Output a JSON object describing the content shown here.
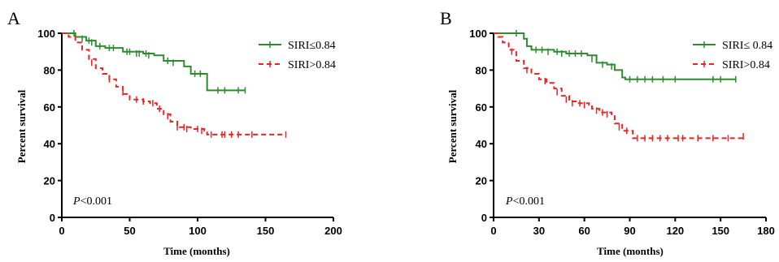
{
  "chart_data": [
    {
      "panel_label": "A",
      "type": "line",
      "subtype": "kaplan-meier",
      "ylabel": "Percent survival",
      "xlabel": "Time (months)",
      "xlim": [
        0,
        200
      ],
      "ylim": [
        0,
        100
      ],
      "xticks": [
        "0",
        "50",
        "100",
        "150",
        "200"
      ],
      "yticks": [
        "0",
        "20",
        "40",
        "60",
        "80",
        "100"
      ],
      "annotation": {
        "italic": "P",
        "rest": "<0.001"
      },
      "grid": false,
      "legend_position": "top-right",
      "series": [
        {
          "name": "SIRI≤0.84",
          "color": "#2e8b2e",
          "style": "solid",
          "points": [
            [
              0,
              100
            ],
            [
              8,
              100
            ],
            [
              10,
              98
            ],
            [
              18,
              96
            ],
            [
              25,
              93
            ],
            [
              32,
              92
            ],
            [
              45,
              90
            ],
            [
              60,
              89
            ],
            [
              68,
              88
            ],
            [
              75,
              85
            ],
            [
              90,
              82
            ],
            [
              95,
              78
            ],
            [
              107,
              78
            ],
            [
              107,
              69
            ],
            [
              135,
              69
            ]
          ],
          "censors": [
            [
              9,
              100
            ],
            [
              15,
              97
            ],
            [
              20,
              96
            ],
            [
              22,
              95
            ],
            [
              28,
              93
            ],
            [
              35,
              92
            ],
            [
              38,
              92
            ],
            [
              48,
              90
            ],
            [
              50,
              90
            ],
            [
              55,
              89
            ],
            [
              57,
              89
            ],
            [
              62,
              89
            ],
            [
              64,
              88
            ],
            [
              78,
              85
            ],
            [
              82,
              84
            ],
            [
              98,
              78
            ],
            [
              102,
              78
            ],
            [
              115,
              69
            ],
            [
              120,
              69
            ],
            [
              130,
              69
            ],
            [
              135,
              69
            ]
          ]
        },
        {
          "name": "SIRI>0.84",
          "color": "#ee2222",
          "style": "dashed",
          "points": [
            [
              0,
              100
            ],
            [
              5,
              98
            ],
            [
              10,
              95
            ],
            [
              15,
              91
            ],
            [
              20,
              86
            ],
            [
              25,
              81
            ],
            [
              30,
              78
            ],
            [
              35,
              75
            ],
            [
              40,
              71
            ],
            [
              45,
              67
            ],
            [
              50,
              64
            ],
            [
              60,
              63
            ],
            [
              65,
              62
            ],
            [
              70,
              59
            ],
            [
              75,
              56
            ],
            [
              80,
              52
            ],
            [
              85,
              49
            ],
            [
              95,
              48
            ],
            [
              105,
              47
            ],
            [
              107,
              45
            ],
            [
              165,
              45
            ]
          ],
          "censors": [
            [
              22,
              84
            ],
            [
              35,
              75
            ],
            [
              45,
              68
            ],
            [
              55,
              64
            ],
            [
              60,
              63
            ],
            [
              67,
              62
            ],
            [
              72,
              59
            ],
            [
              78,
              55
            ],
            [
              85,
              49
            ],
            [
              90,
              49
            ],
            [
              92,
              48
            ],
            [
              100,
              48
            ],
            [
              103,
              47
            ],
            [
              110,
              45
            ],
            [
              118,
              45
            ],
            [
              120,
              45
            ],
            [
              125,
              45
            ],
            [
              130,
              45
            ],
            [
              140,
              45
            ],
            [
              165,
              45
            ]
          ]
        }
      ]
    },
    {
      "panel_label": "B",
      "type": "line",
      "subtype": "kaplan-meier",
      "ylabel": "Percent survival",
      "xlabel": "Time (months)",
      "xlim": [
        0,
        180
      ],
      "ylim": [
        0,
        100
      ],
      "xticks": [
        "0",
        "30",
        "60",
        "90",
        "120",
        "150",
        "180"
      ],
      "yticks": [
        "0",
        "20",
        "40",
        "60",
        "80",
        "100"
      ],
      "annotation": {
        "italic": "P",
        "rest": "<0.001"
      },
      "grid": false,
      "legend_position": "top-right",
      "series": [
        {
          "name": "SIRI≤ 0.84",
          "color": "#2e8b2e",
          "style": "solid",
          "points": [
            [
              0,
              100
            ],
            [
              18,
              100
            ],
            [
              20,
              97
            ],
            [
              22,
              93
            ],
            [
              25,
              91
            ],
            [
              40,
              90
            ],
            [
              48,
              89
            ],
            [
              60,
              89
            ],
            [
              62,
              88
            ],
            [
              68,
              84
            ],
            [
              75,
              83
            ],
            [
              80,
              80
            ],
            [
              85,
              76
            ],
            [
              87,
              75
            ],
            [
              160,
              75
            ]
          ],
          "censors": [
            [
              15,
              100
            ],
            [
              28,
              91
            ],
            [
              32,
              91
            ],
            [
              36,
              90
            ],
            [
              42,
              90
            ],
            [
              45,
              89
            ],
            [
              50,
              89
            ],
            [
              54,
              89
            ],
            [
              58,
              89
            ],
            [
              65,
              86
            ],
            [
              72,
              83
            ],
            [
              78,
              82
            ],
            [
              90,
              75
            ],
            [
              95,
              75
            ],
            [
              100,
              75
            ],
            [
              105,
              75
            ],
            [
              112,
              75
            ],
            [
              120,
              75
            ],
            [
              145,
              75
            ],
            [
              150,
              75
            ],
            [
              160,
              75
            ]
          ]
        },
        {
          "name": "SIRI>0.84",
          "color": "#ee2222",
          "style": "dashed",
          "points": [
            [
              0,
              100
            ],
            [
              3,
              98
            ],
            [
              6,
              95
            ],
            [
              10,
              91
            ],
            [
              15,
              85
            ],
            [
              20,
              81
            ],
            [
              25,
              78
            ],
            [
              30,
              75
            ],
            [
              35,
              73
            ],
            [
              40,
              70
            ],
            [
              45,
              66
            ],
            [
              50,
              63
            ],
            [
              55,
              62
            ],
            [
              63,
              61
            ],
            [
              65,
              59
            ],
            [
              70,
              57
            ],
            [
              78,
              56
            ],
            [
              80,
              51
            ],
            [
              85,
              47
            ],
            [
              90,
              47
            ],
            [
              92,
              43
            ],
            [
              165,
              43
            ]
          ],
          "censors": [
            [
              12,
              90
            ],
            [
              22,
              80
            ],
            [
              34,
              74
            ],
            [
              42,
              68
            ],
            [
              48,
              64
            ],
            [
              52,
              62
            ],
            [
              57,
              62
            ],
            [
              60,
              61
            ],
            [
              68,
              58
            ],
            [
              72,
              57
            ],
            [
              75,
              56
            ],
            [
              83,
              49
            ],
            [
              88,
              47
            ],
            [
              95,
              43
            ],
            [
              100,
              43
            ],
            [
              105,
              43
            ],
            [
              110,
              43
            ],
            [
              115,
              43
            ],
            [
              122,
              43
            ],
            [
              125,
              43
            ],
            [
              135,
              43
            ],
            [
              145,
              43
            ],
            [
              155,
              43
            ],
            [
              165,
              44
            ]
          ]
        }
      ]
    }
  ]
}
